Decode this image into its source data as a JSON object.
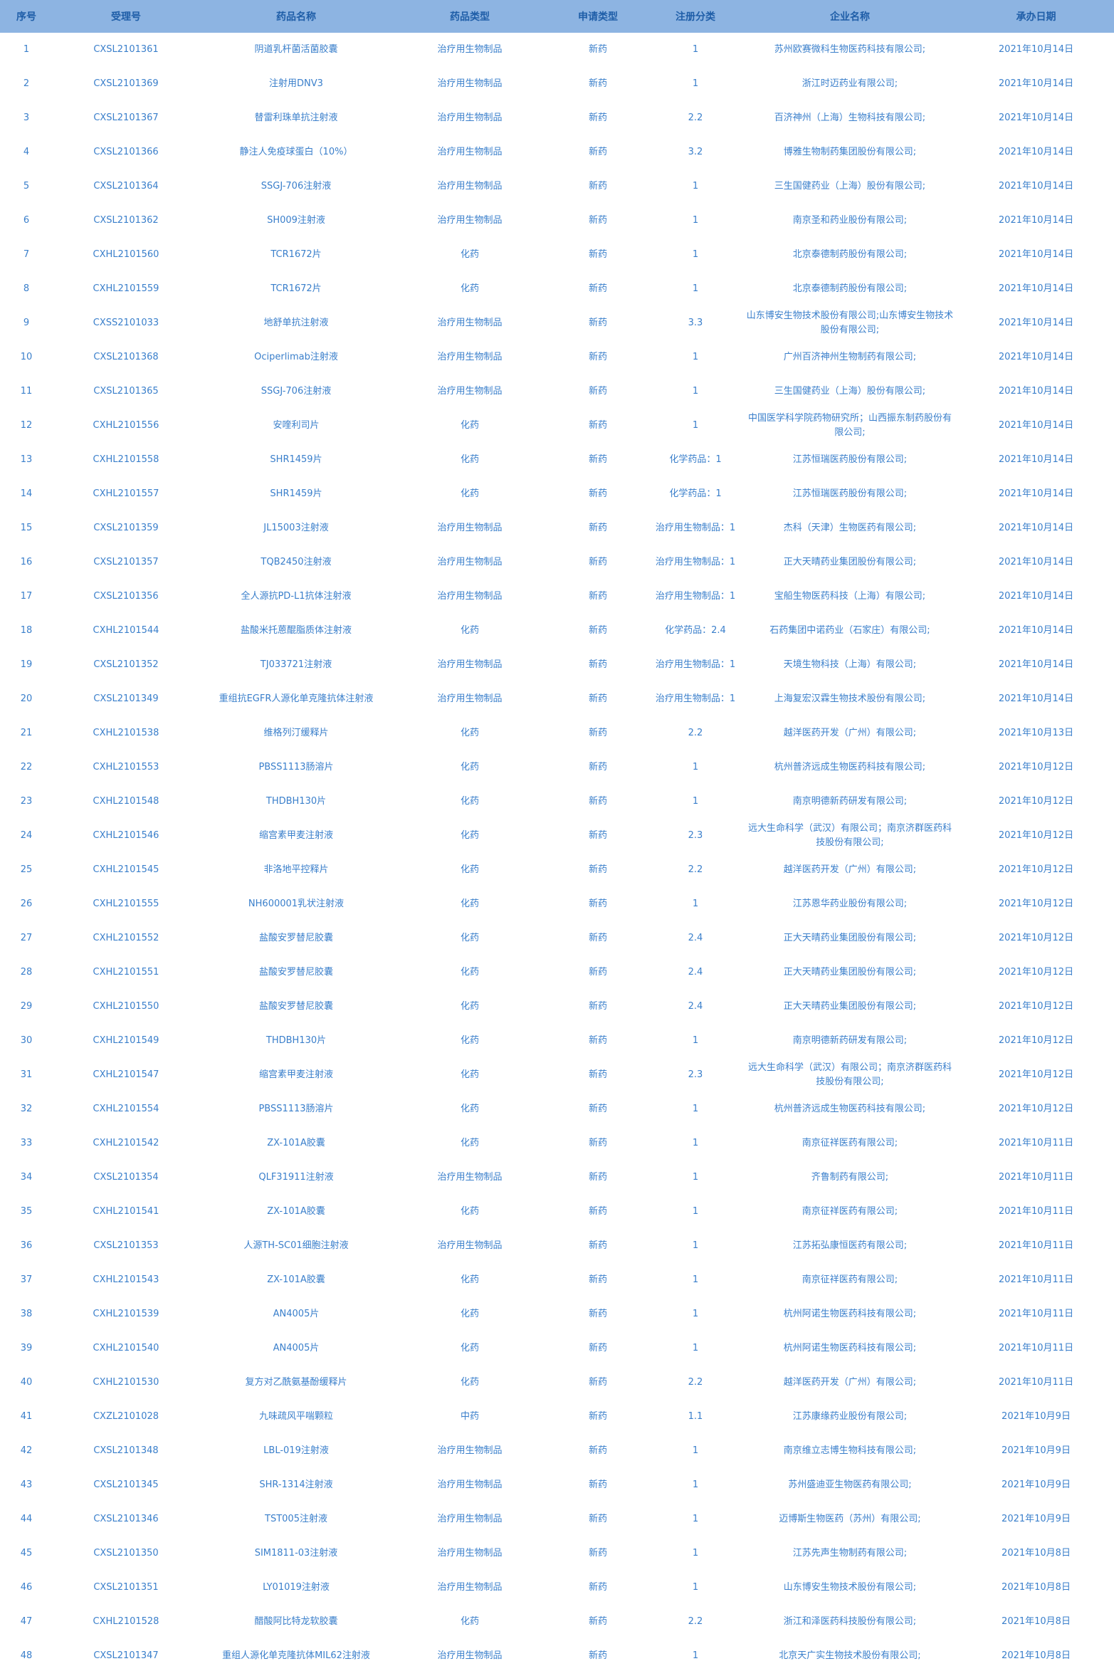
{
  "table": {
    "headers": [
      "序号",
      "受理号",
      "药品名称",
      "药品类型",
      "申请类型",
      "注册分类",
      "企业名称",
      "承办日期"
    ],
    "rows": [
      [
        "1",
        "CXSL2101361",
        "阴道乳杆菌活菌胶囊",
        "治疗用生物制品",
        "新药",
        "1",
        "苏州欧赛微科生物医药科技有限公司;",
        "2021年10月14日"
      ],
      [
        "2",
        "CXSL2101369",
        "注射用DNV3",
        "治疗用生物制品",
        "新药",
        "1",
        "浙江时迈药业有限公司;",
        "2021年10月14日"
      ],
      [
        "3",
        "CXSL2101367",
        "替雷利珠单抗注射液",
        "治疗用生物制品",
        "新药",
        "2.2",
        "百济神州（上海）生物科技有限公司;",
        "2021年10月14日"
      ],
      [
        "4",
        "CXSL2101366",
        "静注人免疫球蛋白（10%）",
        "治疗用生物制品",
        "新药",
        "3.2",
        "博雅生物制药集团股份有限公司;",
        "2021年10月14日"
      ],
      [
        "5",
        "CXSL2101364",
        "SSGJ-706注射液",
        "治疗用生物制品",
        "新药",
        "1",
        "三生国健药业（上海）股份有限公司;",
        "2021年10月14日"
      ],
      [
        "6",
        "CXSL2101362",
        "SH009注射液",
        "治疗用生物制品",
        "新药",
        "1",
        "南京圣和药业股份有限公司;",
        "2021年10月14日"
      ],
      [
        "7",
        "CXHL2101560",
        "TCR1672片",
        "化药",
        "新药",
        "1",
        "北京泰德制药股份有限公司;",
        "2021年10月14日"
      ],
      [
        "8",
        "CXHL2101559",
        "TCR1672片",
        "化药",
        "新药",
        "1",
        "北京泰德制药股份有限公司;",
        "2021年10月14日"
      ],
      [
        "9",
        "CXSS2101033",
        "地舒单抗注射液",
        "治疗用生物制品",
        "新药",
        "3.3",
        "山东博安生物技术股份有限公司;山东博安生物技术股份有限公司;",
        "2021年10月14日"
      ],
      [
        "10",
        "CXSL2101368",
        "Ociperlimab注射液",
        "治疗用生物制品",
        "新药",
        "1",
        "广州百济神州生物制药有限公司;",
        "2021年10月14日"
      ],
      [
        "11",
        "CXSL2101365",
        "SSGJ-706注射液",
        "治疗用生物制品",
        "新药",
        "1",
        "三生国健药业（上海）股份有限公司;",
        "2021年10月14日"
      ],
      [
        "12",
        "CXHL2101556",
        "安喹利司片",
        "化药",
        "新药",
        "1",
        "中国医学科学院药物研究所；山西振东制药股份有限公司;",
        "2021年10月14日"
      ],
      [
        "13",
        "CXHL2101558",
        "SHR1459片",
        "化药",
        "新药",
        "化学药品：1",
        "江苏恒瑞医药股份有限公司;",
        "2021年10月14日"
      ],
      [
        "14",
        "CXHL2101557",
        "SHR1459片",
        "化药",
        "新药",
        "化学药品：1",
        "江苏恒瑞医药股份有限公司;",
        "2021年10月14日"
      ],
      [
        "15",
        "CXSL2101359",
        "JL15003注射液",
        "治疗用生物制品",
        "新药",
        "治疗用生物制品：1",
        "杰科（天津）生物医药有限公司;",
        "2021年10月14日"
      ],
      [
        "16",
        "CXSL2101357",
        "TQB2450注射液",
        "治疗用生物制品",
        "新药",
        "治疗用生物制品：1",
        "正大天晴药业集团股份有限公司;",
        "2021年10月14日"
      ],
      [
        "17",
        "CXSL2101356",
        "全人源抗PD-L1抗体注射液",
        "治疗用生物制品",
        "新药",
        "治疗用生物制品：1",
        "宝船生物医药科技（上海）有限公司;",
        "2021年10月14日"
      ],
      [
        "18",
        "CXHL2101544",
        "盐酸米托蒽醌脂质体注射液",
        "化药",
        "新药",
        "化学药品：2.4",
        "石药集团中诺药业（石家庄）有限公司;",
        "2021年10月14日"
      ],
      [
        "19",
        "CXSL2101352",
        "TJ033721注射液",
        "治疗用生物制品",
        "新药",
        "治疗用生物制品：1",
        "天境生物科技（上海）有限公司;",
        "2021年10月14日"
      ],
      [
        "20",
        "CXSL2101349",
        "重组抗EGFR人源化单克隆抗体注射液",
        "治疗用生物制品",
        "新药",
        "治疗用生物制品：1",
        "上海复宏汉霖生物技术股份有限公司;",
        "2021年10月14日"
      ],
      [
        "21",
        "CXHL2101538",
        "维格列汀缓释片",
        "化药",
        "新药",
        "2.2",
        "越洋医药开发（广州）有限公司;",
        "2021年10月13日"
      ],
      [
        "22",
        "CXHL2101553",
        "PBSS1113肠溶片",
        "化药",
        "新药",
        "1",
        "杭州普济远成生物医药科技有限公司;",
        "2021年10月12日"
      ],
      [
        "23",
        "CXHL2101548",
        "THDBH130片",
        "化药",
        "新药",
        "1",
        "南京明德新药研发有限公司;",
        "2021年10月12日"
      ],
      [
        "24",
        "CXHL2101546",
        "缩宫素甲麦注射液",
        "化药",
        "新药",
        "2.3",
        "远大生命科学（武汉）有限公司；南京济群医药科技股份有限公司;",
        "2021年10月12日"
      ],
      [
        "25",
        "CXHL2101545",
        "非洛地平控释片",
        "化药",
        "新药",
        "2.2",
        "越洋医药开发（广州）有限公司;",
        "2021年10月12日"
      ],
      [
        "26",
        "CXHL2101555",
        "NH600001乳状注射液",
        "化药",
        "新药",
        "1",
        "江苏恩华药业股份有限公司;",
        "2021年10月12日"
      ],
      [
        "27",
        "CXHL2101552",
        "盐酸安罗替尼胶囊",
        "化药",
        "新药",
        "2.4",
        "正大天晴药业集团股份有限公司;",
        "2021年10月12日"
      ],
      [
        "28",
        "CXHL2101551",
        "盐酸安罗替尼胶囊",
        "化药",
        "新药",
        "2.4",
        "正大天晴药业集团股份有限公司;",
        "2021年10月12日"
      ],
      [
        "29",
        "CXHL2101550",
        "盐酸安罗替尼胶囊",
        "化药",
        "新药",
        "2.4",
        "正大天晴药业集团股份有限公司;",
        "2021年10月12日"
      ],
      [
        "30",
        "CXHL2101549",
        "THDBH130片",
        "化药",
        "新药",
        "1",
        "南京明德新药研发有限公司;",
        "2021年10月12日"
      ],
      [
        "31",
        "CXHL2101547",
        "缩宫素甲麦注射液",
        "化药",
        "新药",
        "2.3",
        "远大生命科学（武汉）有限公司；南京济群医药科技股份有限公司;",
        "2021年10月12日"
      ],
      [
        "32",
        "CXHL2101554",
        "PBSS1113肠溶片",
        "化药",
        "新药",
        "1",
        "杭州普济远成生物医药科技有限公司;",
        "2021年10月12日"
      ],
      [
        "33",
        "CXHL2101542",
        "ZX-101A胶囊",
        "化药",
        "新药",
        "1",
        "南京征祥医药有限公司;",
        "2021年10月11日"
      ],
      [
        "34",
        "CXSL2101354",
        "QLF31911注射液",
        "治疗用生物制品",
        "新药",
        "1",
        "齐鲁制药有限公司;",
        "2021年10月11日"
      ],
      [
        "35",
        "CXHL2101541",
        "ZX-101A胶囊",
        "化药",
        "新药",
        "1",
        "南京征祥医药有限公司;",
        "2021年10月11日"
      ],
      [
        "36",
        "CXSL2101353",
        "人源TH-SC01细胞注射液",
        "治疗用生物制品",
        "新药",
        "1",
        "江苏拓弘康恒医药有限公司;",
        "2021年10月11日"
      ],
      [
        "37",
        "CXHL2101543",
        "ZX-101A胶囊",
        "化药",
        "新药",
        "1",
        "南京征祥医药有限公司;",
        "2021年10月11日"
      ],
      [
        "38",
        "CXHL2101539",
        "AN4005片",
        "化药",
        "新药",
        "1",
        "杭州阿诺生物医药科技有限公司;",
        "2021年10月11日"
      ],
      [
        "39",
        "CXHL2101540",
        "AN4005片",
        "化药",
        "新药",
        "1",
        "杭州阿诺生物医药科技有限公司;",
        "2021年10月11日"
      ],
      [
        "40",
        "CXHL2101530",
        "复方对乙酰氨基酚缓释片",
        "化药",
        "新药",
        "2.2",
        "越洋医药开发（广州）有限公司;",
        "2021年10月11日"
      ],
      [
        "41",
        "CXZL2101028",
        "九味疏风平喘颗粒",
        "中药",
        "新药",
        "1.1",
        "江苏康缘药业股份有限公司;",
        "2021年10月9日"
      ],
      [
        "42",
        "CXSL2101348",
        "LBL-019注射液",
        "治疗用生物制品",
        "新药",
        "1",
        "南京维立志博生物科技有限公司;",
        "2021年10月9日"
      ],
      [
        "43",
        "CXSL2101345",
        "SHR-1314注射液",
        "治疗用生物制品",
        "新药",
        "1",
        "苏州盛迪亚生物医药有限公司;",
        "2021年10月9日"
      ],
      [
        "44",
        "CXSL2101346",
        "TST005注射液",
        "治疗用生物制品",
        "新药",
        "1",
        "迈博斯生物医药（苏州）有限公司;",
        "2021年10月9日"
      ],
      [
        "45",
        "CXSL2101350",
        "SIM1811-03注射液",
        "治疗用生物制品",
        "新药",
        "1",
        "江苏先声生物制药有限公司;",
        "2021年10月8日"
      ],
      [
        "46",
        "CXSL2101351",
        "LY01019注射液",
        "治疗用生物制品",
        "新药",
        "1",
        "山东博安生物技术股份有限公司;",
        "2021年10月8日"
      ],
      [
        "47",
        "CXHL2101528",
        "醋酸阿比特龙软胶囊",
        "化药",
        "新药",
        "2.2",
        "浙江和泽医药科技股份有限公司;",
        "2021年10月8日"
      ],
      [
        "48",
        "CXSL2101347",
        "重组人源化单克隆抗体MIL62注射液",
        "治疗用生物制品",
        "新药",
        "1",
        "北京天广实生物技术股份有限公司;",
        "2021年10月8日"
      ]
    ]
  },
  "colors": {
    "header_bg": "#8db4e2",
    "header_text": "#1f5ea8",
    "cell_text": "#3a7fcb"
  }
}
